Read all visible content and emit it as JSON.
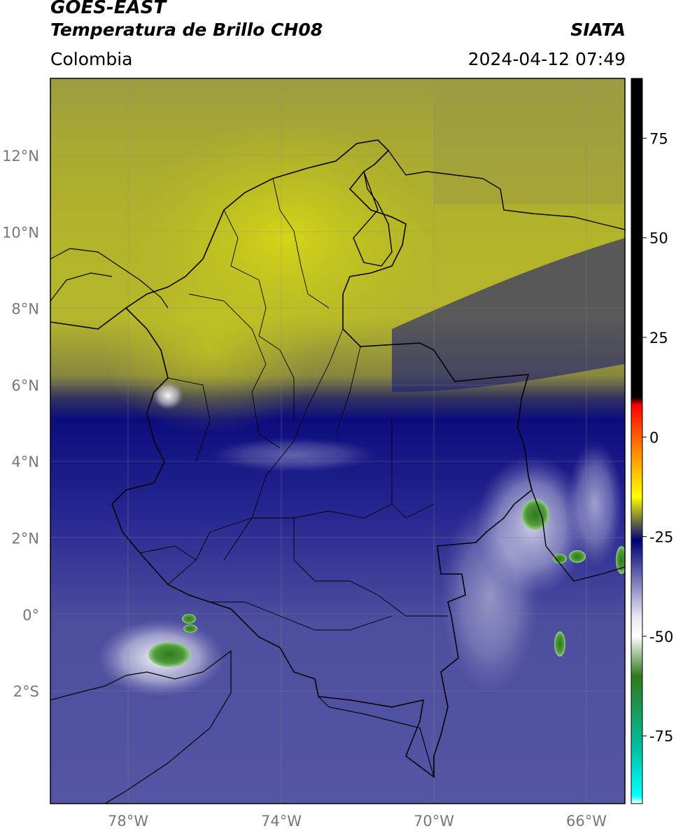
{
  "header": {
    "satellite": "GOES-EAST",
    "product": "Temperatura de Brillo CH08",
    "organization": "SIATA",
    "region": "Colombia",
    "timestamp": "2024-04-12 07:49"
  },
  "map": {
    "lat_ticks": [
      "12°N",
      "10°N",
      "8°N",
      "6°N",
      "4°N",
      "2°N",
      "0°",
      "2°S"
    ],
    "lon_ticks": [
      "78°W",
      "74°W",
      "70°W",
      "66°W"
    ]
  },
  "colorbar": {
    "ticks": [
      "75",
      "50",
      "25",
      "0",
      "-25",
      "-50",
      "-75"
    ],
    "stops": [
      {
        "value": 90,
        "color": "#000000"
      },
      {
        "value": 10,
        "color": "#000000"
      },
      {
        "value": 8,
        "color": "#ff0000"
      },
      {
        "value": -5,
        "color": "#ff9900"
      },
      {
        "value": -15,
        "color": "#ffff00"
      },
      {
        "value": -22,
        "color": "#5a5a4a"
      },
      {
        "value": -26,
        "color": "#00007a"
      },
      {
        "value": -45,
        "color": "#e6e6f2"
      },
      {
        "value": -50,
        "color": "#ffffff"
      },
      {
        "value": -60,
        "color": "#2f7a1a"
      },
      {
        "value": -78,
        "color": "#00c0a0"
      },
      {
        "value": -90,
        "color": "#00ffff"
      },
      {
        "value": -92,
        "color": "#ffffff"
      }
    ]
  }
}
